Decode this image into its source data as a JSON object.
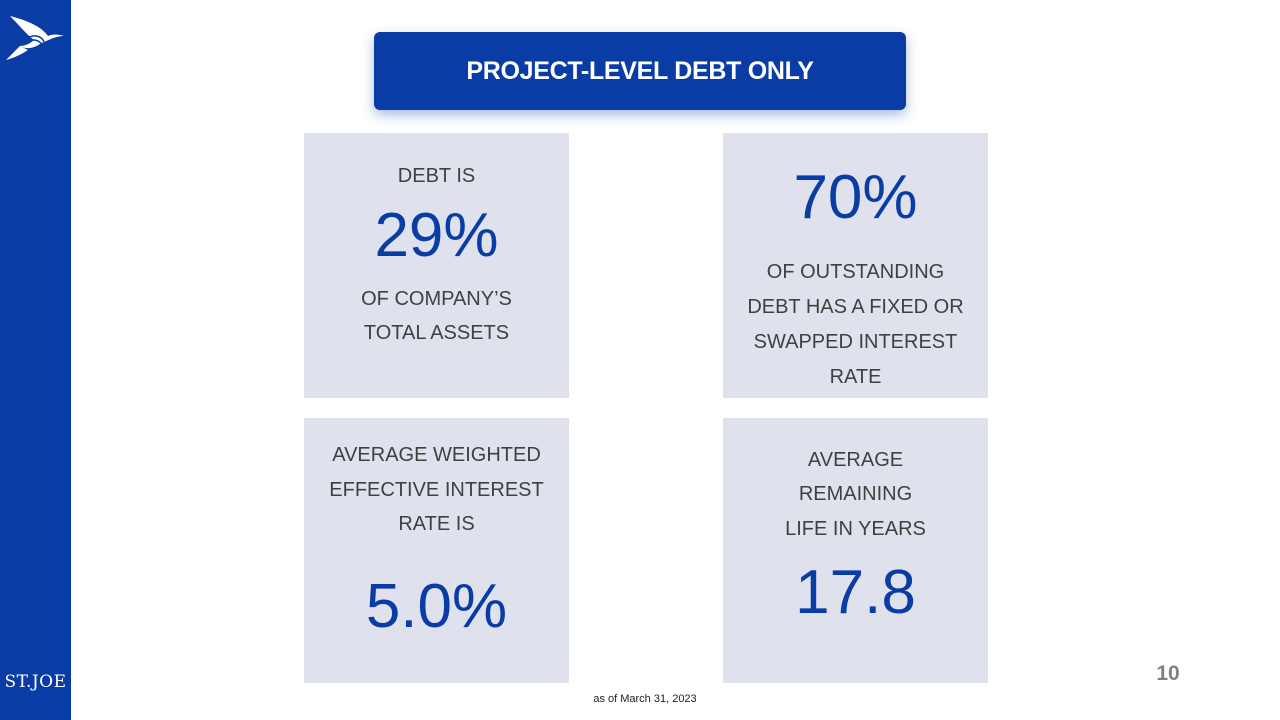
{
  "brand": {
    "name": "ST.JOE",
    "logo": "bird-logo-icon",
    "color": "#0a3ca5"
  },
  "title": "PROJECT-LEVEL DEBT ONLY",
  "cards": {
    "debt_ratio": {
      "pre": "DEBT IS",
      "value": "29%",
      "post_1": "OF COMPANY’S",
      "post_2": "TOTAL ASSETS"
    },
    "fixed_rate": {
      "value": "70%",
      "line_1": "OF OUTSTANDING",
      "line_2": "DEBT HAS A FIXED OR",
      "line_3": "SWAPPED INTEREST",
      "line_4": "RATE"
    },
    "interest_rate": {
      "line_1": "AVERAGE WEIGHTED",
      "line_2": "EFFECTIVE INTEREST",
      "line_3": "RATE IS",
      "value": "5.0%"
    },
    "remaining_life": {
      "line_1": "AVERAGE",
      "line_2": "REMAINING",
      "line_3": "LIFE IN YEARS",
      "value": "17.8"
    }
  },
  "footnote": "as of March 31, 2023",
  "page_number": "10"
}
